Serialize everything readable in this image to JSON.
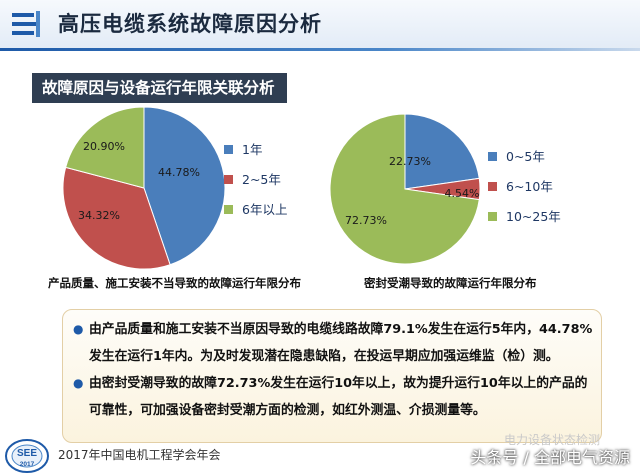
{
  "header": {
    "title": "高压电缆系统故障原因分析"
  },
  "section": {
    "label": "故障原因与设备运行年限关联分析"
  },
  "chart_data": [
    {
      "type": "pie",
      "title": "产品质量、施工安装不当导致的故障运行年限分布",
      "categories": [
        "1年",
        "2~5年",
        "6年以上"
      ],
      "values": [
        44.78,
        34.32,
        20.9
      ],
      "value_labels": [
        "44.78%",
        "34.32%",
        "20.90%"
      ],
      "colors": [
        "#4a7ebb",
        "#c0504d",
        "#9bbb59"
      ],
      "legend": "right"
    },
    {
      "type": "pie",
      "title": "密封受潮导致的故障运行年限分布",
      "categories": [
        "0~5年",
        "6~10年",
        "10~25年"
      ],
      "values": [
        22.73,
        4.54,
        72.73
      ],
      "value_labels": [
        "22.73%",
        "4.54%",
        "72.73%"
      ],
      "colors": [
        "#4a7ebb",
        "#c0504d",
        "#9bbb59"
      ],
      "legend": "right"
    }
  ],
  "notes": {
    "items": [
      "由产品质量和施工安装不当原因导致的电缆线路故障79.1%发生在运行5年内，44.78%发生在运行1年内。为及时发现潜在隐患缺陷，在投运早期应加强运维监（检）测。",
      "由密封受潮导致的故障72.73%发生在运行10年以上，故为提升运行10年以上的产品的可靠性，可加强设备密封受潮方面的检测，如红外测温、介损测量等。"
    ]
  },
  "footer": {
    "logo_text": "SEE",
    "logo_year": "2017",
    "conference": "2017年中国电机工程学会年会"
  },
  "watermark": {
    "top": "电力设备状态检测",
    "main": "头条号 / 全部电气资源"
  }
}
